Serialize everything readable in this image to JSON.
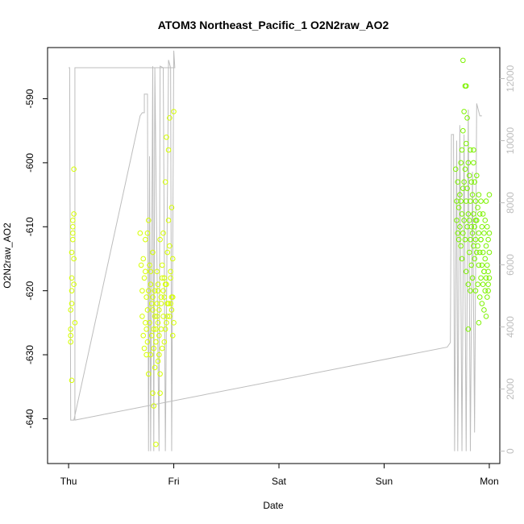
{
  "chart_data": {
    "type": "scatter",
    "title": "ATOM3 Northeast_Pacific_1 O2N2raw_AO2",
    "xlabel": "Date",
    "ylabel": "O2N2raw_AO2",
    "x_tick_labels": [
      "Thu",
      "Fri",
      "Sat",
      "Sun",
      "Mon"
    ],
    "xlim_days": [
      -0.2,
      4.1
    ],
    "ylim": [
      -647,
      -582
    ],
    "y_ticks": [
      -590,
      -600,
      -610,
      -620,
      -630,
      -640
    ],
    "y_tick_labels": [
      "-590",
      "-600",
      "-610",
      "-620",
      "-630",
      "-640"
    ],
    "y2_ticks": [
      0,
      2000,
      4000,
      6000,
      8000,
      10000,
      12000
    ],
    "y2_tick_labels": [
      "0",
      "2000",
      "4000",
      "6000",
      "8000",
      "10000",
      "12000"
    ],
    "y2lim": [
      -400,
      13000
    ],
    "grid": false,
    "colors": {
      "early_points": "#d6ff00",
      "late_points": "#7df200",
      "altitude_line": "#bdbdbd"
    },
    "series": [
      {
        "name": "",
        "kind": "points",
        "x": [
          0.02,
          0.02,
          0.02,
          0.02,
          0.03,
          0.03,
          0.03,
          0.03,
          0.03,
          0.04,
          0.04,
          0.04,
          0.04,
          0.05,
          0.05,
          0.05,
          0.05,
          0.06,
          0.68,
          0.69,
          0.7,
          0.7,
          0.71,
          0.71,
          0.72,
          0.72,
          0.73,
          0.73,
          0.73,
          0.74,
          0.74,
          0.74,
          0.75,
          0.75,
          0.75,
          0.76,
          0.76,
          0.76,
          0.77,
          0.77,
          0.78,
          0.78,
          0.79,
          0.79,
          0.8,
          0.8,
          0.8,
          0.81,
          0.81,
          0.81,
          0.82,
          0.82,
          0.83,
          0.83,
          0.84,
          0.84,
          0.85,
          0.85,
          0.85,
          0.86,
          0.86,
          0.87,
          0.87,
          0.88,
          0.88,
          0.89,
          0.89,
          0.9,
          0.9,
          0.91,
          0.91,
          0.92,
          0.92,
          0.93,
          0.93,
          0.94,
          0.94,
          0.95,
          0.95,
          0.96,
          0.96,
          0.97,
          0.97,
          0.98,
          0.98,
          0.99,
          0.99,
          1.0,
          1.0,
          0.86,
          0.84,
          0.82,
          0.9,
          0.92,
          0.95,
          0.97,
          0.99,
          0.87,
          0.89,
          0.93,
          0.96,
          0.98,
          0.78,
          0.8,
          0.83,
          0.85,
          0.88,
          0.91,
          0.94
        ],
        "y": [
          -623,
          -627,
          -626,
          -628,
          -614,
          -618,
          -620,
          -622,
          -634,
          -612,
          -609,
          -611,
          -610,
          -608,
          -601,
          -619,
          -615,
          -625,
          -611,
          -616,
          -620,
          -624,
          -615,
          -627,
          -618,
          -629,
          -617,
          -612,
          -625,
          -621,
          -626,
          -630,
          -611,
          -623,
          -628,
          -609,
          -620,
          -633,
          -616,
          -625,
          -619,
          -630,
          -622,
          -627,
          -614,
          -621,
          -636,
          -626,
          -629,
          -638,
          -620,
          -624,
          -628,
          -644,
          -617,
          -622,
          -625,
          -631,
          -619,
          -623,
          -627,
          -633,
          -636,
          -621,
          -626,
          -629,
          -618,
          -624,
          -611,
          -621,
          -628,
          -603,
          -619,
          -625,
          -596,
          -614,
          -622,
          -598,
          -609,
          -624,
          -593,
          -617,
          -622,
          -607,
          -623,
          -615,
          -621,
          -592,
          -625,
          -630,
          -624,
          -632,
          -620,
          -626,
          -622,
          -618,
          -627,
          -612,
          -616,
          -619,
          -613,
          -621,
          -617,
          -623,
          -626,
          -620,
          -622,
          -618,
          -624
        ]
      },
      {
        "name": "",
        "kind": "points",
        "x": [
          3.68,
          3.69,
          3.69,
          3.7,
          3.7,
          3.71,
          3.71,
          3.72,
          3.72,
          3.73,
          3.73,
          3.73,
          3.74,
          3.74,
          3.74,
          3.75,
          3.75,
          3.75,
          3.76,
          3.76,
          3.76,
          3.77,
          3.77,
          3.77,
          3.78,
          3.78,
          3.78,
          3.79,
          3.79,
          3.79,
          3.8,
          3.8,
          3.8,
          3.81,
          3.81,
          3.81,
          3.82,
          3.82,
          3.82,
          3.83,
          3.83,
          3.83,
          3.84,
          3.84,
          3.84,
          3.85,
          3.85,
          3.85,
          3.86,
          3.86,
          3.86,
          3.87,
          3.87,
          3.87,
          3.88,
          3.88,
          3.88,
          3.89,
          3.89,
          3.89,
          3.9,
          3.9,
          3.9,
          3.91,
          3.91,
          3.91,
          3.92,
          3.92,
          3.92,
          3.93,
          3.93,
          3.93,
          3.94,
          3.94,
          3.94,
          3.95,
          3.95,
          3.95,
          3.96,
          3.96,
          3.96,
          3.97,
          3.97,
          3.97,
          3.98,
          3.98,
          3.98,
          3.99,
          3.99,
          3.99,
          4.0,
          4.0,
          4.0,
          4.0,
          3.75,
          3.78,
          3.8,
          3.82,
          3.85,
          3.87,
          3.9,
          3.92,
          3.95,
          3.97,
          3.99
        ],
        "y": [
          -601,
          -606,
          -609,
          -603,
          -611,
          -607,
          -612,
          -605,
          -610,
          -600,
          -606,
          -613,
          -598,
          -608,
          -615,
          -595,
          -604,
          -611,
          -592,
          -603,
          -609,
          -588,
          -601,
          -612,
          -597,
          -606,
          -617,
          -593,
          -604,
          -610,
          -600,
          -608,
          -619,
          -602,
          -609,
          -614,
          -598,
          -606,
          -612,
          -603,
          -610,
          -616,
          -605,
          -611,
          -618,
          -600,
          -608,
          -613,
          -603,
          -610,
          -615,
          -606,
          -612,
          -620,
          -602,
          -609,
          -614,
          -607,
          -613,
          -619,
          -605,
          -611,
          -616,
          -608,
          -614,
          -621,
          -606,
          -612,
          -618,
          -610,
          -616,
          -622,
          -608,
          -614,
          -619,
          -611,
          -617,
          -623,
          -609,
          -615,
          -620,
          -613,
          -618,
          -624,
          -610,
          -616,
          -621,
          -612,
          -617,
          -620,
          -605,
          -611,
          -614,
          -618,
          -584,
          -588,
          -626,
          -620,
          -598,
          -609,
          -625,
          -612,
          -617,
          -606,
          -619
        ]
      },
      {
        "name": "",
        "kind": "line",
        "axis": "right",
        "x": [
          0.0,
          0.03,
          0.05,
          0.06,
          0.08,
          0.7,
          0.71,
          0.74,
          0.74,
          0.75,
          0.76,
          0.76,
          0.78,
          0.78,
          0.8,
          0.82,
          0.82,
          0.83,
          0.84,
          0.85,
          0.86,
          0.86,
          0.87,
          0.88,
          0.89,
          0.9,
          0.9,
          0.91,
          0.92,
          0.93,
          0.94,
          0.95,
          0.96,
          0.97,
          0.98,
          0.99,
          1.0,
          1.0,
          1.01,
          0.06,
          3.6,
          3.63,
          3.65,
          3.67,
          3.68,
          3.69,
          3.7,
          3.71,
          3.72,
          3.73,
          3.74,
          3.75,
          3.76,
          3.77,
          3.78,
          3.79,
          3.8,
          3.81,
          3.82,
          3.83,
          3.84,
          3.85,
          3.86,
          3.87,
          3.88,
          3.89,
          3.9,
          3.91,
          3.92,
          3.93,
          3.94,
          3.95,
          3.96,
          3.97,
          3.98,
          3.99,
          4.0
        ],
        "y": [
          12350,
          12350,
          12350,
          12350,
          12350,
          12350,
          12350,
          12350,
          12350,
          12350,
          12350,
          12350,
          12350,
          12350,
          12350,
          12350,
          12350,
          12350,
          12350,
          12350,
          12350,
          12350,
          12350,
          12350,
          12350,
          12350,
          12350,
          12350,
          12350,
          12350,
          12350,
          12350,
          12350,
          12350,
          12350,
          12350,
          12350,
          12350,
          12350,
          12350,
          12350,
          12350,
          12350,
          12350,
          12350,
          12350,
          12350,
          12350,
          12350,
          12350,
          12350,
          12350,
          12350,
          12350,
          12350,
          12350,
          12350,
          12350,
          12350,
          12350,
          12350,
          12350,
          12350,
          12350,
          12350,
          12350,
          12350,
          12350,
          12350,
          12350,
          12350,
          12350,
          12350,
          12350,
          12350,
          12350,
          12350
        ]
      }
    ]
  }
}
